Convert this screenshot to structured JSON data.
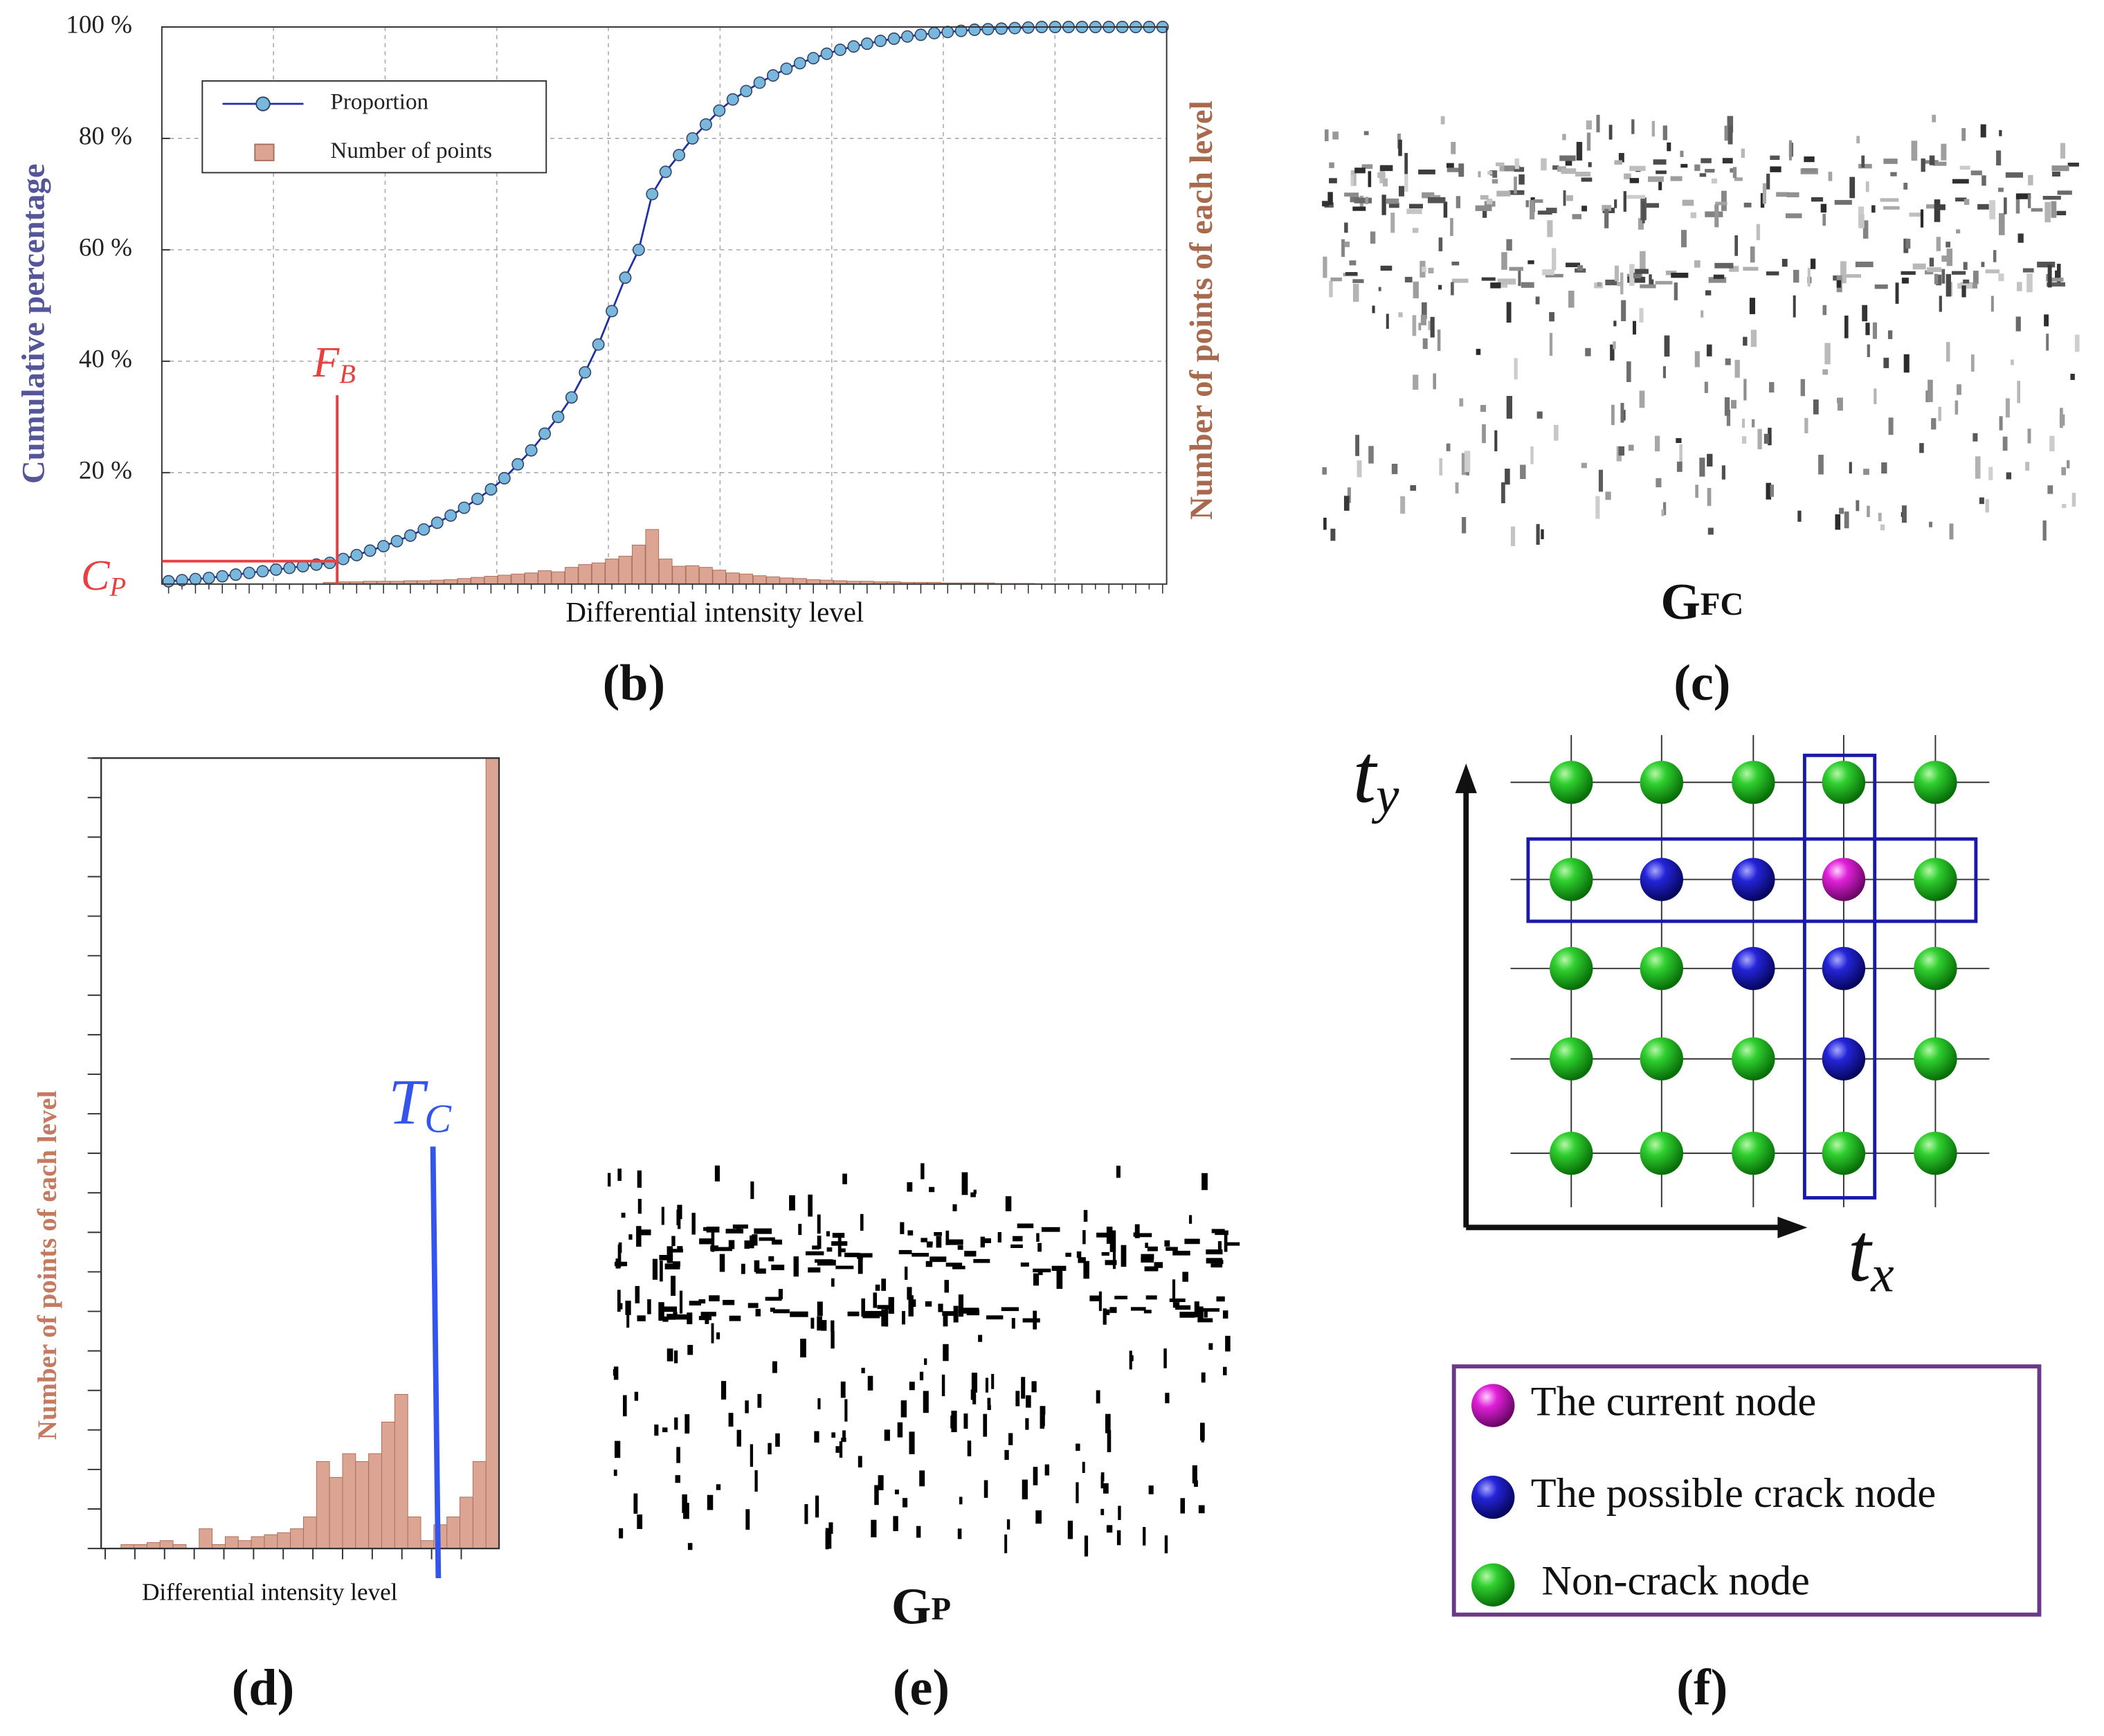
{
  "chart_data": [
    {
      "type": "combo",
      "caption": "(b)",
      "x_label": "Differential intensity  level",
      "y_label": "Cumulative percentage",
      "y2_label": "Number of points of each level",
      "categories": [
        null,
        null,
        null,
        null,
        null,
        null,
        null,
        null,
        null,
        null,
        null,
        null,
        null,
        null,
        null,
        null,
        null,
        null,
        null,
        null,
        null,
        null,
        null,
        null,
        null,
        null,
        null,
        null,
        null,
        null,
        null,
        null,
        null,
        null,
        null,
        null,
        null,
        null,
        null,
        null,
        null,
        null,
        null,
        null,
        null,
        null,
        null,
        null,
        null,
        null,
        null,
        null,
        null,
        null,
        null,
        null,
        null,
        null,
        null,
        null,
        null,
        null,
        null,
        null,
        null,
        null,
        null,
        null,
        null,
        null,
        null,
        null,
        null,
        null,
        null
      ],
      "ylim": [
        0,
        100
      ],
      "yticks": [
        {
          "value": 20,
          "label": "20 %"
        },
        {
          "value": 40,
          "label": "40 %"
        },
        {
          "value": 60,
          "label": "60 %"
        },
        {
          "value": 80,
          "label": "80 %"
        },
        {
          "value": 100,
          "label": "100 %"
        }
      ],
      "grid": true,
      "legend": "upper left",
      "series": [
        {
          "name": "Proportion",
          "type": "line",
          "color": "#1f2fa8",
          "marker_color": "#79b8dc",
          "values": [
            0.5,
            0.7,
            0.9,
            1.1,
            1.4,
            1.7,
            2,
            2.3,
            2.6,
            2.9,
            3.2,
            3.5,
            3.8,
            4.5,
            5.2,
            6,
            6.8,
            7.7,
            8.7,
            9.8,
            11,
            12.3,
            13.7,
            15.3,
            17,
            19,
            21.5,
            24,
            27,
            30,
            33.5,
            38,
            43,
            49,
            55,
            60,
            70,
            74,
            77,
            80,
            82.5,
            85,
            87,
            88.5,
            90,
            91.3,
            92.5,
            93.5,
            94.4,
            95.2,
            95.9,
            96.5,
            97,
            97.5,
            97.9,
            98.3,
            98.6,
            98.9,
            99.1,
            99.3,
            99.5,
            99.6,
            99.7,
            99.8,
            99.9,
            100,
            100,
            100,
            100,
            100,
            100,
            100,
            100,
            100,
            100
          ]
        },
        {
          "name": "Number of points",
          "type": "bar",
          "color": "#dca593",
          "values": [
            0,
            0,
            0,
            0,
            0,
            0,
            0,
            0,
            0,
            0,
            0,
            0,
            0.3,
            0.4,
            0.4,
            0.5,
            0.5,
            0.5,
            0.6,
            0.6,
            0.7,
            0.8,
            1,
            1.2,
            1.4,
            1.6,
            1.8,
            2,
            2.4,
            2.2,
            3,
            3.5,
            3.8,
            4.5,
            5,
            7,
            9.8,
            4.5,
            3.2,
            3.3,
            3,
            2.5,
            2,
            1.8,
            1.5,
            1.3,
            1.1,
            1,
            0.8,
            0.7,
            0.6,
            0.5,
            0.5,
            0.4,
            0.4,
            0.3,
            0.3,
            0.3,
            0.2,
            0.2,
            0.2,
            0.2,
            0.1,
            0.1,
            0.1,
            0,
            0,
            0,
            0,
            0,
            0,
            0,
            0,
            0,
            0
          ]
        }
      ],
      "annotations": [
        {
          "text": "F",
          "sub": "B"
        },
        {
          "text": "C",
          "sub": "P"
        }
      ]
    },
    {
      "type": "bar",
      "caption": "(d)",
      "x_label": "Differential intensity level",
      "y_label": "Number of points of each level",
      "categories": [
        null,
        null,
        null,
        null,
        null,
        null,
        null,
        null,
        null,
        null,
        null,
        null,
        null,
        null,
        null,
        null,
        null,
        null,
        null,
        null,
        null,
        null,
        null,
        null,
        null,
        null,
        null,
        null,
        null,
        null
      ],
      "values": [
        0,
        0.1,
        0.1,
        0.15,
        0.2,
        0.1,
        0,
        0.5,
        0.1,
        0.3,
        0.2,
        0.3,
        0.35,
        0.4,
        0.5,
        0.8,
        2.2,
        1.8,
        2.4,
        2.2,
        2.4,
        3.2,
        3.9,
        0.8,
        0.2,
        0.6,
        0.8,
        1.3,
        2.2,
        20
      ],
      "color": "#dca593",
      "ylim": [
        0,
        20
      ],
      "yticks": [
        0,
        1,
        2,
        3,
        4,
        5,
        6,
        7,
        8,
        9,
        10,
        11,
        12,
        13,
        14,
        15,
        16,
        17,
        18,
        19,
        20
      ],
      "annotations": [
        {
          "text": "T",
          "sub": "C"
        }
      ]
    }
  ],
  "images": [
    {
      "caption": "(c)",
      "label": "G",
      "sub": "FC"
    },
    {
      "caption": "(e)",
      "label": "G",
      "sub": "P"
    }
  ],
  "diagram": {
    "caption": "(f)",
    "axes": [
      {
        "text": "t",
        "sub": "y"
      },
      {
        "text": "t",
        "sub": "x"
      }
    ],
    "legend": [
      "The current node",
      "The possible crack node",
      "Non-crack node"
    ]
  }
}
